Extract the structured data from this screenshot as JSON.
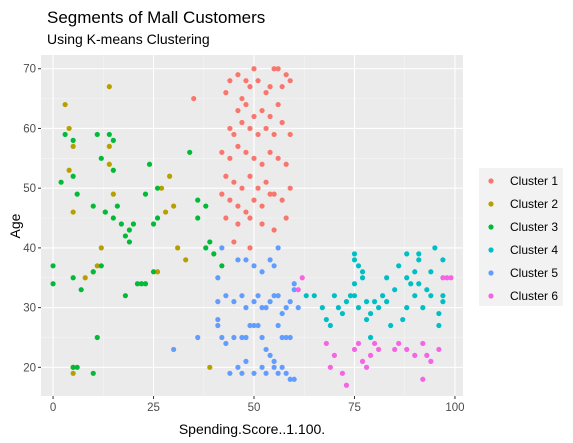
{
  "chart_data": {
    "type": "scatter",
    "title": "Segments of Mall Customers",
    "subtitle": "Using K-means Clustering",
    "xlabel": "Spending.Score..1.100.",
    "ylabel": "Age",
    "xlim": [
      -3,
      102
    ],
    "ylim": [
      15.2,
      72.3
    ],
    "x_ticks": [
      0,
      25,
      50,
      75,
      100
    ],
    "y_ticks": [
      20,
      30,
      40,
      50,
      60,
      70
    ],
    "grid": true,
    "panel_background": "#ebebeb",
    "legend_position": "right",
    "series": [
      {
        "name": "Cluster 1",
        "color": "#F8766D",
        "points": [
          [
            43,
            66
          ],
          [
            44,
            68
          ],
          [
            46,
            69
          ],
          [
            47,
            65
          ],
          [
            48,
            68
          ],
          [
            49,
            67
          ],
          [
            50,
            70
          ],
          [
            51,
            68
          ],
          [
            53,
            66
          ],
          [
            54,
            67
          ],
          [
            55,
            70
          ],
          [
            56,
            70
          ],
          [
            57,
            67
          ],
          [
            58,
            69
          ],
          [
            59,
            68
          ],
          [
            46,
            63
          ],
          [
            48,
            64
          ],
          [
            50,
            62
          ],
          [
            52,
            63
          ],
          [
            54,
            62
          ],
          [
            56,
            64
          ],
          [
            44,
            60
          ],
          [
            45,
            59
          ],
          [
            47,
            61
          ],
          [
            49,
            60
          ],
          [
            51,
            59
          ],
          [
            53,
            60
          ],
          [
            55,
            59
          ],
          [
            57,
            61
          ],
          [
            59,
            59
          ],
          [
            42,
            56
          ],
          [
            44,
            55
          ],
          [
            46,
            57
          ],
          [
            48,
            56
          ],
          [
            50,
            55
          ],
          [
            52,
            54
          ],
          [
            54,
            56
          ],
          [
            56,
            55
          ],
          [
            58,
            54
          ],
          [
            43,
            52
          ],
          [
            45,
            51
          ],
          [
            47,
            50
          ],
          [
            49,
            52
          ],
          [
            51,
            50
          ],
          [
            53,
            51
          ],
          [
            55,
            49
          ],
          [
            57,
            48
          ],
          [
            59,
            50
          ],
          [
            42,
            49
          ],
          [
            44,
            48
          ],
          [
            46,
            47
          ],
          [
            48,
            46
          ],
          [
            50,
            48
          ],
          [
            52,
            47
          ],
          [
            54,
            49
          ],
          [
            43,
            45
          ],
          [
            46,
            44
          ],
          [
            49,
            45
          ],
          [
            52,
            44
          ],
          [
            55,
            43
          ],
          [
            58,
            45
          ],
          [
            45,
            41
          ],
          [
            49,
            40
          ],
          [
            35,
            65
          ]
        ]
      },
      {
        "name": "Cluster 2",
        "color": "#B79F00",
        "points": [
          [
            3,
            64
          ],
          [
            4,
            60
          ],
          [
            5,
            57
          ],
          [
            4,
            53
          ],
          [
            5,
            46
          ],
          [
            14,
            67
          ],
          [
            14,
            57
          ],
          [
            14,
            54
          ],
          [
            15,
            49
          ],
          [
            13,
            46
          ],
          [
            12,
            40
          ],
          [
            11,
            37
          ],
          [
            10,
            36
          ],
          [
            8,
            35
          ],
          [
            27,
            50
          ],
          [
            29,
            52
          ],
          [
            30,
            47
          ],
          [
            28,
            46
          ],
          [
            31,
            40
          ],
          [
            33,
            38
          ],
          [
            26,
            36
          ],
          [
            39,
            20
          ],
          [
            5,
            19
          ],
          [
            5,
            20
          ]
        ]
      },
      {
        "name": "Cluster 3",
        "color": "#00BA38",
        "points": [
          [
            3,
            59
          ],
          [
            5,
            58
          ],
          [
            11,
            59
          ],
          [
            14,
            59
          ],
          [
            15,
            58
          ],
          [
            12,
            55
          ],
          [
            15,
            53
          ],
          [
            2,
            51
          ],
          [
            5,
            52
          ],
          [
            6,
            49
          ],
          [
            10,
            47
          ],
          [
            13,
            46
          ],
          [
            16,
            47
          ],
          [
            17,
            44
          ],
          [
            15,
            45
          ],
          [
            18,
            42
          ],
          [
            19,
            43
          ],
          [
            20,
            44
          ],
          [
            19,
            41
          ],
          [
            23,
            49
          ],
          [
            26,
            45
          ],
          [
            25,
            44
          ],
          [
            26,
            50
          ],
          [
            24,
            54
          ],
          [
            34,
            56
          ],
          [
            36,
            48
          ],
          [
            38,
            47
          ],
          [
            36,
            45
          ],
          [
            39,
            41
          ],
          [
            0,
            37
          ],
          [
            0,
            34
          ],
          [
            5,
            35
          ],
          [
            7,
            33
          ],
          [
            10,
            36
          ],
          [
            12,
            37
          ],
          [
            18,
            32
          ],
          [
            21,
            34
          ],
          [
            22,
            34
          ],
          [
            23,
            34
          ],
          [
            25,
            36
          ],
          [
            40,
            39
          ],
          [
            42,
            37
          ],
          [
            38,
            40
          ],
          [
            5,
            20
          ],
          [
            6,
            20
          ],
          [
            10,
            19
          ],
          [
            11,
            25
          ]
        ]
      },
      {
        "name": "Cluster 4",
        "color": "#00BFC4",
        "points": [
          [
            63,
            32
          ],
          [
            65,
            32
          ],
          [
            67,
            30
          ],
          [
            68,
            28
          ],
          [
            69,
            27
          ],
          [
            70,
            32
          ],
          [
            71,
            30
          ],
          [
            72,
            29
          ],
          [
            73,
            31
          ],
          [
            74,
            32
          ],
          [
            75,
            32
          ],
          [
            75,
            34
          ],
          [
            76,
            30
          ],
          [
            77,
            36
          ],
          [
            77,
            35
          ],
          [
            75,
            39
          ],
          [
            78,
            31
          ],
          [
            78,
            28
          ],
          [
            79,
            29
          ],
          [
            79,
            25
          ],
          [
            80,
            31
          ],
          [
            81,
            30
          ],
          [
            82,
            32
          ],
          [
            83,
            35
          ],
          [
            83,
            31
          ],
          [
            84,
            27
          ],
          [
            85,
            33
          ],
          [
            86,
            37
          ],
          [
            87,
            28
          ],
          [
            88,
            30
          ],
          [
            88,
            39
          ],
          [
            88,
            35
          ],
          [
            89,
            34
          ],
          [
            90,
            36
          ],
          [
            90,
            32
          ],
          [
            91,
            34
          ],
          [
            91,
            38
          ],
          [
            91,
            39
          ],
          [
            92,
            30
          ],
          [
            93,
            33
          ],
          [
            94,
            32
          ],
          [
            94,
            36
          ],
          [
            95,
            40
          ],
          [
            96,
            29
          ],
          [
            96,
            27
          ],
          [
            97,
            31
          ],
          [
            97,
            32
          ],
          [
            97,
            38
          ],
          [
            75,
            38
          ],
          [
            76,
            37
          ]
        ]
      },
      {
        "name": "Cluster 5",
        "color": "#619CFF",
        "points": [
          [
            41,
            35
          ],
          [
            41,
            31
          ],
          [
            41,
            28
          ],
          [
            41,
            27
          ],
          [
            43,
            32
          ],
          [
            45,
            31
          ],
          [
            47,
            32
          ],
          [
            48,
            30
          ],
          [
            50,
            31
          ],
          [
            51,
            32
          ],
          [
            52,
            30
          ],
          [
            53,
            30
          ],
          [
            54,
            31
          ],
          [
            55,
            32
          ],
          [
            56,
            32
          ],
          [
            57,
            29
          ],
          [
            58,
            30
          ],
          [
            59,
            31
          ],
          [
            60,
            33
          ],
          [
            60,
            34
          ],
          [
            61,
            30
          ],
          [
            42,
            40
          ],
          [
            46,
            38
          ],
          [
            48,
            38
          ],
          [
            50,
            37
          ],
          [
            52,
            36
          ],
          [
            54,
            38
          ],
          [
            55,
            37
          ],
          [
            56,
            40
          ],
          [
            42,
            25
          ],
          [
            43,
            24
          ],
          [
            45,
            25
          ],
          [
            47,
            25
          ],
          [
            48,
            25
          ],
          [
            49,
            27
          ],
          [
            50,
            27
          ],
          [
            51,
            27
          ],
          [
            52,
            25
          ],
          [
            53,
            23
          ],
          [
            54,
            22
          ],
          [
            55,
            21
          ],
          [
            56,
            27
          ],
          [
            57,
            25
          ],
          [
            58,
            25
          ],
          [
            59,
            25
          ],
          [
            36,
            25
          ],
          [
            30,
            23
          ],
          [
            44,
            19
          ],
          [
            47,
            19
          ],
          [
            50,
            19
          ],
          [
            53,
            19
          ],
          [
            56,
            19
          ],
          [
            58,
            19
          ],
          [
            46,
            20
          ],
          [
            48,
            21
          ],
          [
            52,
            20
          ],
          [
            55,
            20
          ],
          [
            57,
            20
          ],
          [
            59,
            18
          ],
          [
            60,
            18
          ]
        ]
      },
      {
        "name": "Cluster 6",
        "color": "#F564E3",
        "points": [
          [
            62,
            35
          ],
          [
            61,
            33
          ],
          [
            68,
            24
          ],
          [
            70,
            22
          ],
          [
            69,
            20
          ],
          [
            72,
            19
          ],
          [
            75,
            23
          ],
          [
            76,
            24
          ],
          [
            77,
            21
          ],
          [
            78,
            20
          ],
          [
            79,
            22
          ],
          [
            80,
            24
          ],
          [
            81,
            23
          ],
          [
            85,
            23
          ],
          [
            86,
            24
          ],
          [
            88,
            23
          ],
          [
            90,
            22
          ],
          [
            92,
            24
          ],
          [
            93,
            22
          ],
          [
            94,
            21
          ],
          [
            92,
            18
          ],
          [
            96,
            23
          ],
          [
            97,
            35
          ],
          [
            98,
            35
          ],
          [
            99,
            35
          ],
          [
            73,
            17
          ]
        ]
      }
    ]
  }
}
